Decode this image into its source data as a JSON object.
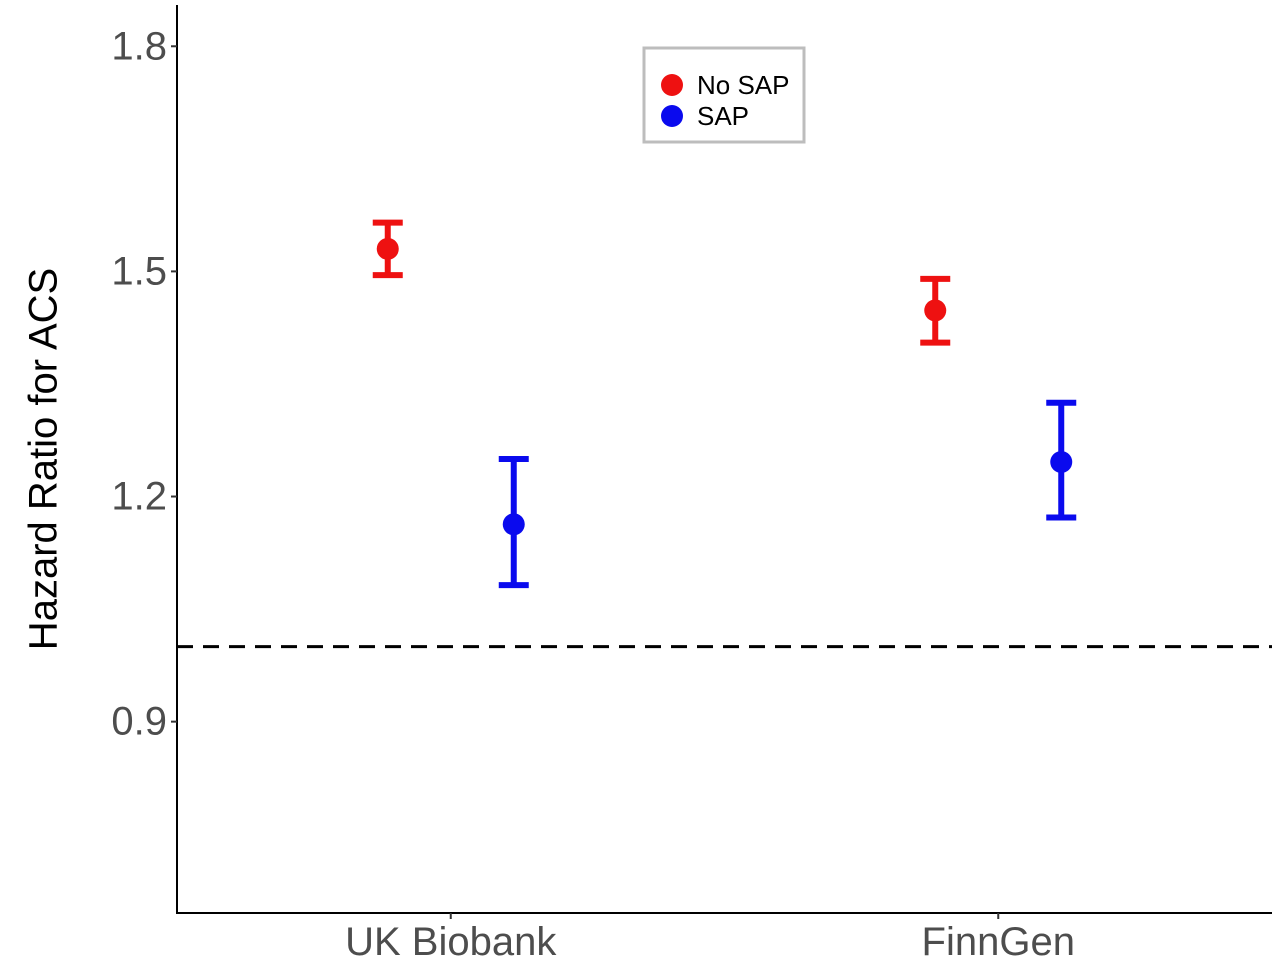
{
  "chart_data": {
    "type": "scatter",
    "title": "",
    "xlabel": "",
    "ylabel": "Hazard Ratio for ACS",
    "categories": [
      "UK Biobank",
      "FinnGen"
    ],
    "ylim": [
      0.645,
      1.855
    ],
    "yticks": [
      "0.9",
      "1.2",
      "1.5",
      "1.8"
    ],
    "reference_line": {
      "y": 1.0,
      "style": "dashed",
      "color": "#000000"
    },
    "grid": false,
    "legend": {
      "position": "top-center",
      "boxed": true
    },
    "series": [
      {
        "name": "No SAP",
        "color": "#ee1111",
        "points": [
          {
            "category": "UK Biobank",
            "y": 1.53,
            "lower": 1.495,
            "upper": 1.565
          },
          {
            "category": "FinnGen",
            "y": 1.448,
            "lower": 1.405,
            "upper": 1.49
          }
        ]
      },
      {
        "name": "SAP",
        "color": "#0a0aee",
        "points": [
          {
            "category": "UK Biobank",
            "y": 1.163,
            "lower": 1.082,
            "upper": 1.25
          },
          {
            "category": "FinnGen",
            "y": 1.246,
            "lower": 1.172,
            "upper": 1.325
          }
        ]
      }
    ]
  }
}
